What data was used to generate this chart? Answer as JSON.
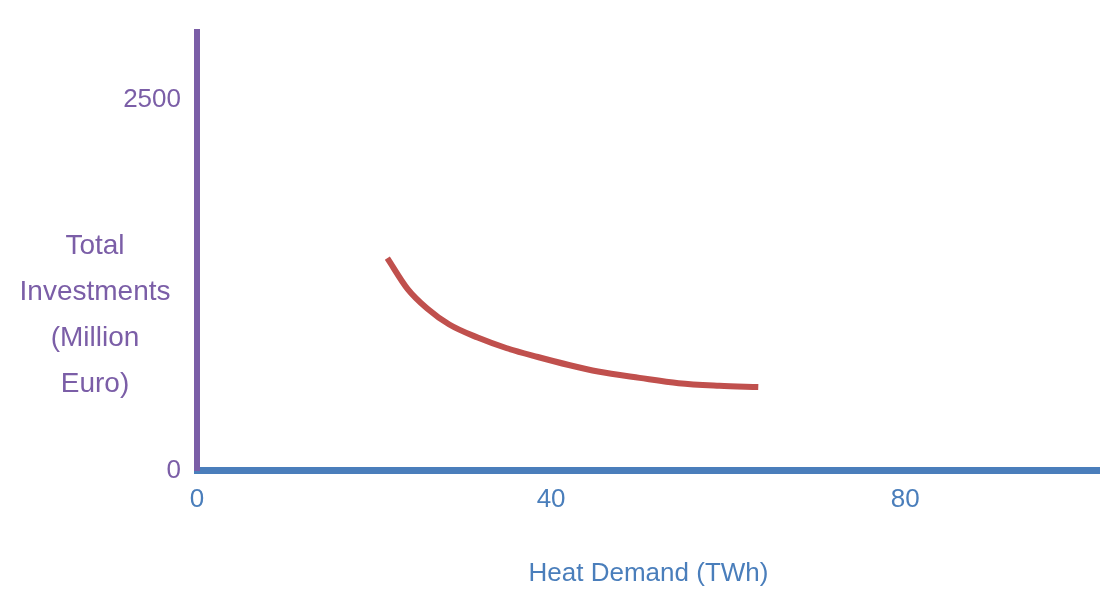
{
  "chart_data": {
    "type": "line",
    "xlabel": "Heat Demand (TWh)",
    "ylabel": "Total Investments (Million Euro)",
    "xlim": [
      0,
      102
    ],
    "xticks": [
      0,
      40,
      80
    ],
    "ylim": [
      0,
      2960
    ],
    "yticks": [
      0,
      2500
    ],
    "grid": false,
    "legend": false,
    "marker": "none",
    "line_style": "solid",
    "series": [
      {
        "color": "#c0504d",
        "x": [
          21.5,
          23.8,
          26,
          28.5,
          31.7,
          35,
          38.5,
          42,
          45.3,
          50,
          54.4,
          59,
          63.4
        ],
        "values": [
          1433,
          1224,
          1093,
          985,
          897,
          825,
          766,
          712,
          668,
          625,
          589,
          572,
          563
        ]
      }
    ]
  }
}
